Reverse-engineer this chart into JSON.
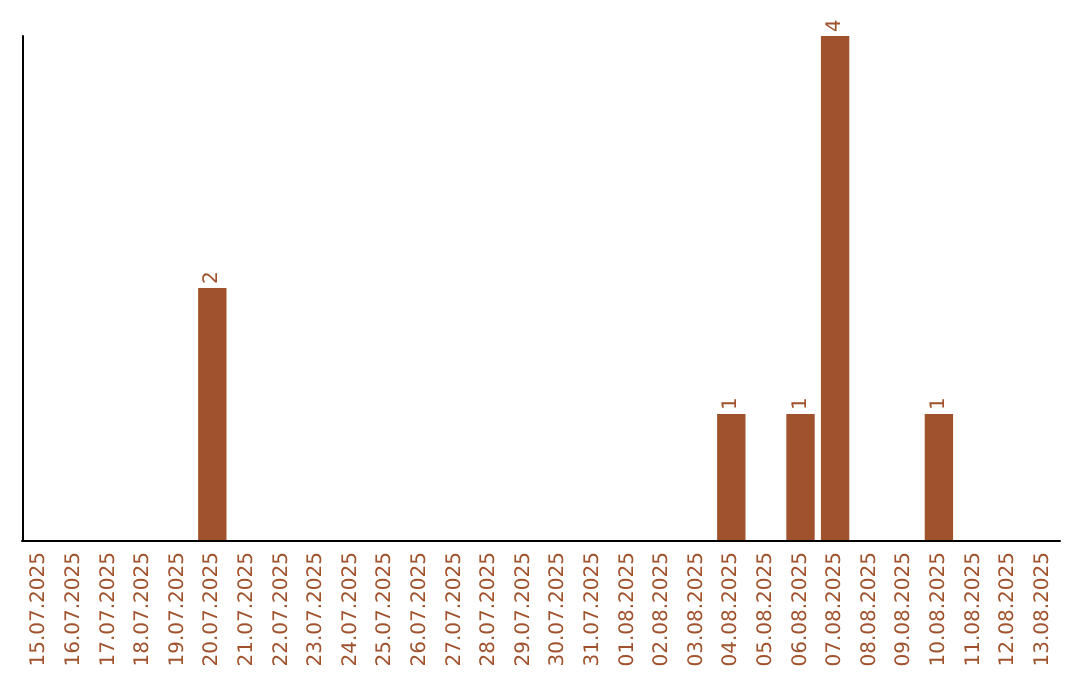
{
  "chart_data": {
    "type": "bar",
    "categories": [
      "15.07.2025",
      "16.07.2025",
      "17.07.2025",
      "18.07.2025",
      "19.07.2025",
      "20.07.2025",
      "21.07.2025",
      "22.07.2025",
      "23.07.2025",
      "24.07.2025",
      "25.07.2025",
      "26.07.2025",
      "27.07.2025",
      "28.07.2025",
      "29.07.2025",
      "30.07.2025",
      "31.07.2025",
      "01.08.2025",
      "02.08.2025",
      "03.08.2025",
      "04.08.2025",
      "05.08.2025",
      "06.08.2025",
      "07.08.2025",
      "08.08.2025",
      "09.08.2025",
      "10.08.2025",
      "11.08.2025",
      "12.08.2025",
      "13.08.2025"
    ],
    "values": [
      0,
      0,
      0,
      0,
      0,
      2,
      0,
      0,
      0,
      0,
      0,
      0,
      0,
      0,
      0,
      0,
      0,
      0,
      0,
      0,
      1,
      0,
      1,
      4,
      0,
      0,
      1,
      0,
      0,
      0
    ],
    "value_labels": [
      null,
      null,
      null,
      null,
      null,
      "2",
      null,
      null,
      null,
      null,
      null,
      null,
      null,
      null,
      null,
      null,
      null,
      null,
      null,
      null,
      "1",
      null,
      "1",
      "4",
      null,
      null,
      "1",
      null,
      null,
      null
    ],
    "color": "#a0522d",
    "tick_labels": "x"
  }
}
